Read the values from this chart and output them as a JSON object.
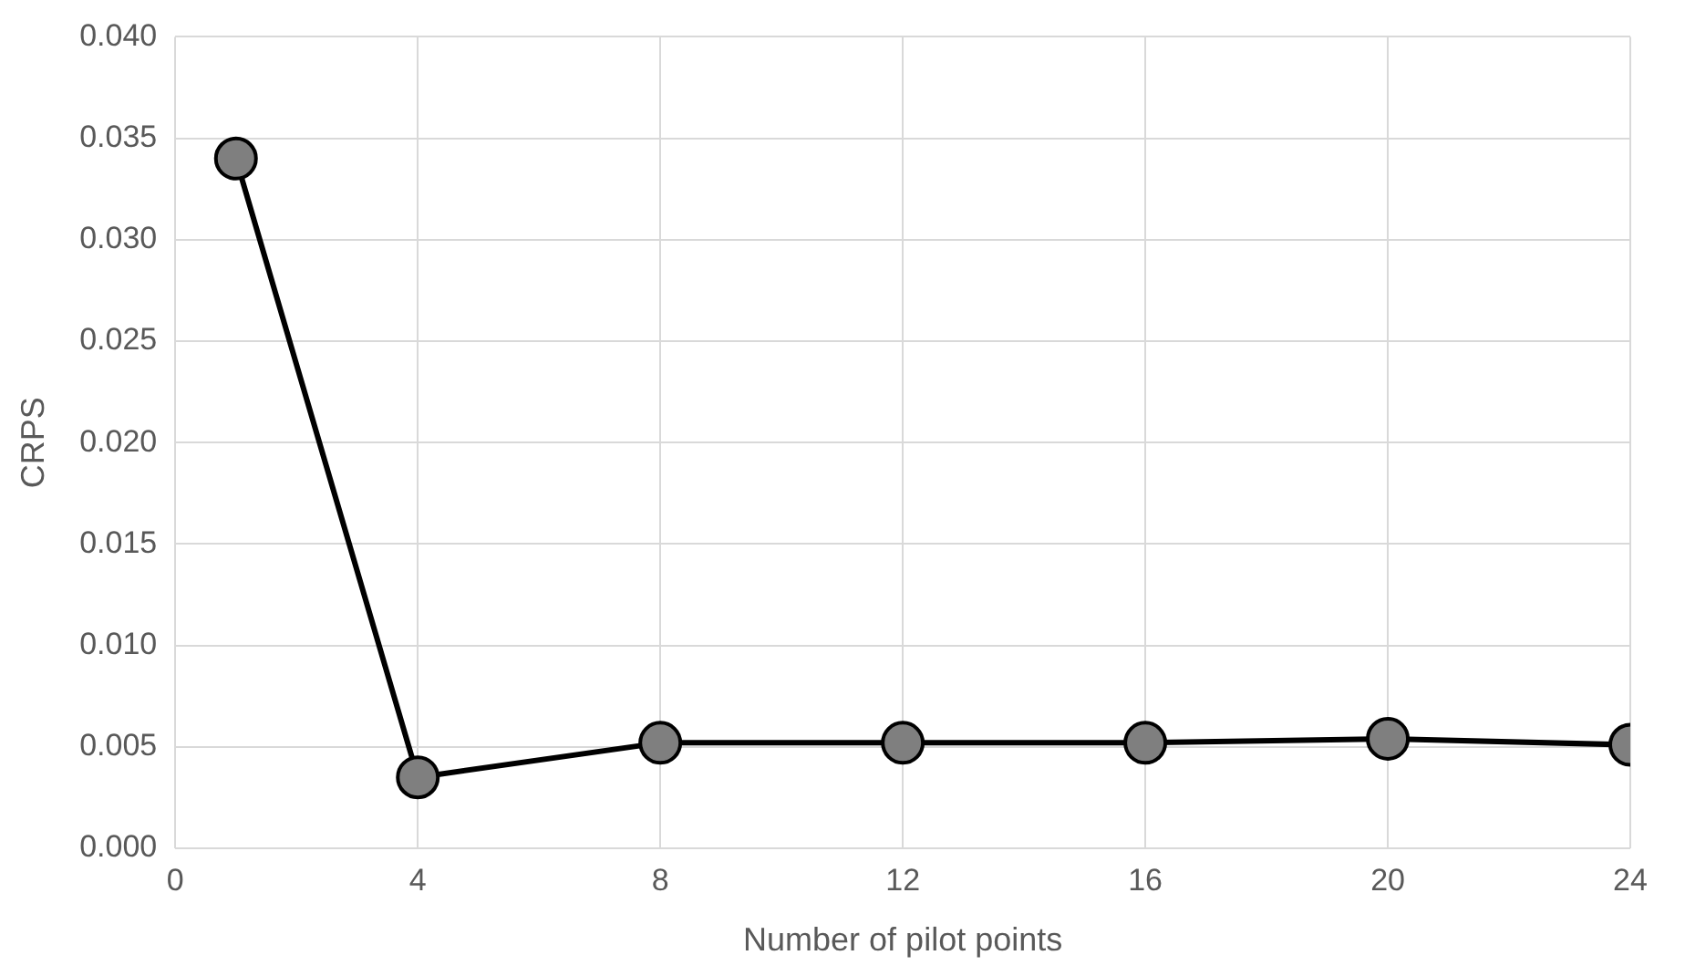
{
  "chart_data": {
    "type": "line",
    "xlabel": "Number of pilot points",
    "ylabel": "CRPS",
    "x": [
      1,
      4,
      8,
      12,
      16,
      20,
      24
    ],
    "series": [
      {
        "color": "#000000",
        "values": [
          0.034,
          0.0035,
          0.0052,
          0.0052,
          0.0052,
          0.0054,
          0.0051
        ]
      }
    ],
    "xlim": [
      0,
      24
    ],
    "xticks": [
      0,
      4,
      8,
      12,
      16,
      20,
      24
    ],
    "ylim": [
      0,
      0.04
    ],
    "yticks": [
      {
        "value": 0,
        "label": "0.000"
      },
      {
        "value": 0.005,
        "label": "0.005"
      },
      {
        "value": 0.01,
        "label": "0.010"
      },
      {
        "value": 0.015,
        "label": "0.015"
      },
      {
        "value": 0.02,
        "label": "0.020"
      },
      {
        "value": 0.025,
        "label": "0.025"
      },
      {
        "value": 0.03,
        "label": "0.030"
      },
      {
        "value": 0.035,
        "label": "0.035"
      },
      {
        "value": 0.04,
        "label": "0.040"
      }
    ],
    "grid": true,
    "legend": false,
    "marker": "circle",
    "line_style": "solid"
  }
}
